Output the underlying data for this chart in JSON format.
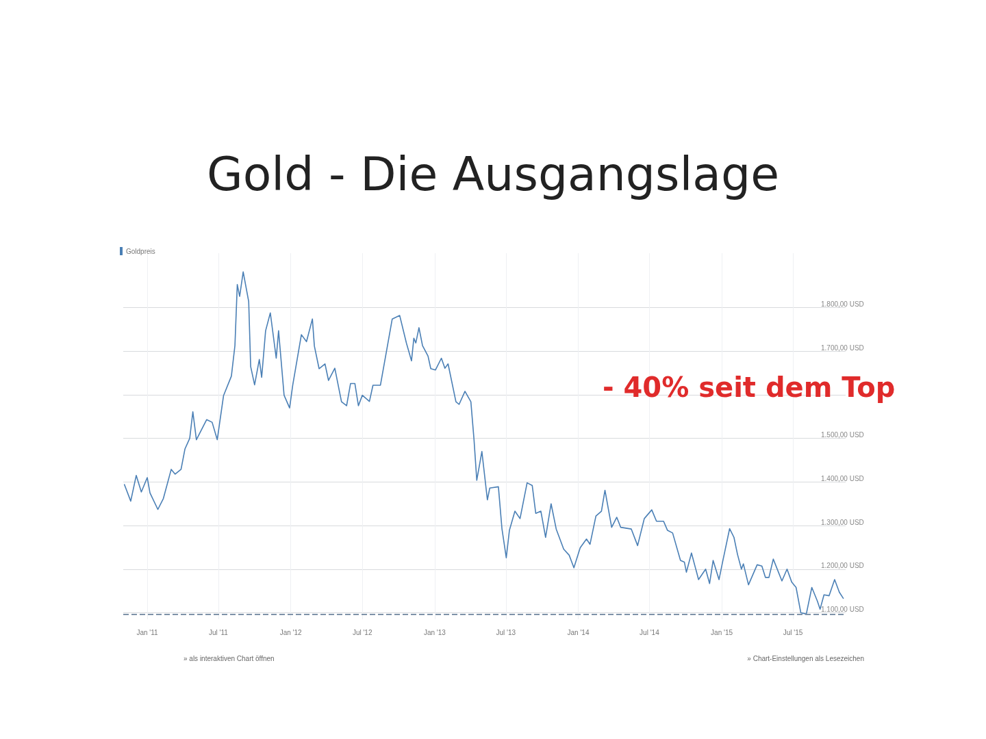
{
  "chart_data": {
    "type": "line",
    "title": "Gold - Die Ausgangslage",
    "annotations": [
      "- 40% seit dem Top",
      "» als interaktiven Chart öffnen",
      "» Chart-Einstellungen als Lesezeichen"
    ],
    "legend": "top left",
    "grid": true,
    "marker": "none",
    "line_style": "solid",
    "xlim": [
      "2010-11-01",
      "2015-11-12"
    ],
    "xticks": [
      {
        "value": "2011-01-01",
        "label": "Jan '11"
      },
      {
        "value": "2011-07-01",
        "label": "Jul '11"
      },
      {
        "value": "2012-01-01",
        "label": "Jan '12"
      },
      {
        "value": "2012-07-01",
        "label": "Jul '12"
      },
      {
        "value": "2013-01-01",
        "label": "Jan '13"
      },
      {
        "value": "2013-07-01",
        "label": "Jul '13"
      },
      {
        "value": "2014-01-01",
        "label": "Jan '14"
      },
      {
        "value": "2014-07-01",
        "label": "Jul '14"
      },
      {
        "value": "2015-01-01",
        "label": "Jan '15"
      },
      {
        "value": "2015-07-01",
        "label": "Jul '15"
      }
    ],
    "ylim": [
      1085,
      1925
    ],
    "yticks": [
      {
        "value": 1100,
        "label": "1.100,00 USD"
      },
      {
        "value": 1200,
        "label": "1.200,00 USD"
      },
      {
        "value": 1300,
        "label": "1.300,00 USD"
      },
      {
        "value": 1400,
        "label": "1.400,00 USD"
      },
      {
        "value": 1500,
        "label": "1.500,00 USD"
      },
      {
        "value": 1600,
        "label": null
      },
      {
        "value": 1700,
        "label": "1.700,00 USD"
      },
      {
        "value": 1800,
        "label": "1.800,00 USD"
      }
    ],
    "ref_lines": [
      {
        "axis": "y",
        "value": 1097,
        "color": "#7f93a8",
        "line_style": "dashed"
      }
    ],
    "x": [
      "2010-11-04",
      "2010-11-20",
      "2010-12-04",
      "2010-12-17",
      "2011-01-01",
      "2011-01-08",
      "2011-01-28",
      "2011-02-11",
      "2011-03-03",
      "2011-03-13",
      "2011-03-28",
      "2011-04-07",
      "2011-04-19",
      "2011-04-27",
      "2011-05-06",
      "2011-06-01",
      "2011-06-15",
      "2011-06-28",
      "2011-07-14",
      "2011-08-03",
      "2011-08-12",
      "2011-08-18",
      "2011-08-24",
      "2011-09-02",
      "2011-09-16",
      "2011-09-21",
      "2011-10-01",
      "2011-10-13",
      "2011-10-19",
      "2011-10-29",
      "2011-11-10",
      "2011-11-25",
      "2011-12-01",
      "2011-12-15",
      "2011-12-29",
      "2012-01-06",
      "2012-01-28",
      "2012-02-10",
      "2012-02-25",
      "2012-03-01",
      "2012-03-13",
      "2012-03-28",
      "2012-04-06",
      "2012-04-22",
      "2012-05-09",
      "2012-05-22",
      "2012-06-01",
      "2012-06-12",
      "2012-06-21",
      "2012-07-01",
      "2012-07-19",
      "2012-07-28",
      "2012-08-16",
      "2012-09-15",
      "2012-10-04",
      "2012-10-21",
      "2012-11-03",
      "2012-11-09",
      "2012-11-14",
      "2012-11-22",
      "2012-12-01",
      "2012-12-15",
      "2012-12-22",
      "2013-01-03",
      "2013-01-18",
      "2013-01-27",
      "2013-02-04",
      "2013-02-24",
      "2013-03-04",
      "2013-03-19",
      "2013-04-03",
      "2013-04-11",
      "2013-04-18",
      "2013-05-01",
      "2013-05-15",
      "2013-05-21",
      "2013-06-12",
      "2013-06-21",
      "2013-07-02",
      "2013-07-10",
      "2013-07-24",
      "2013-08-06",
      "2013-08-24",
      "2013-09-06",
      "2013-09-15",
      "2013-09-28",
      "2013-10-10",
      "2013-10-24",
      "2013-11-06",
      "2013-11-25",
      "2013-12-09",
      "2013-12-21",
      "2014-01-06",
      "2014-01-22",
      "2014-01-31",
      "2014-02-15",
      "2014-03-01",
      "2014-03-10",
      "2014-03-27",
      "2014-04-09",
      "2014-04-19",
      "2014-05-16",
      "2014-06-01",
      "2014-06-18",
      "2014-07-07",
      "2014-07-19",
      "2014-08-06",
      "2014-08-16",
      "2014-08-29",
      "2014-09-18",
      "2014-09-28",
      "2014-10-03",
      "2014-10-16",
      "2014-11-03",
      "2014-11-21",
      "2014-12-01",
      "2014-12-10",
      "2014-12-25",
      "2015-01-03",
      "2015-01-21",
      "2015-02-01",
      "2015-02-10",
      "2015-02-20",
      "2015-02-25",
      "2015-03-10",
      "2015-04-01",
      "2015-04-13",
      "2015-04-22",
      "2015-05-01",
      "2015-05-12",
      "2015-06-03",
      "2015-06-16",
      "2015-06-28",
      "2015-07-09",
      "2015-07-21",
      "2015-08-04",
      "2015-08-18",
      "2015-09-01",
      "2015-09-08",
      "2015-09-18",
      "2015-10-01",
      "2015-10-15",
      "2015-10-27",
      "2015-11-06"
    ],
    "series": [
      {
        "name": "Goldpreis",
        "color": "#4a7fb5",
        "values": [
          1394,
          1356,
          1415,
          1377,
          1410,
          1375,
          1337,
          1362,
          1429,
          1418,
          1429,
          1476,
          1500,
          1561,
          1497,
          1543,
          1537,
          1497,
          1598,
          1643,
          1713,
          1853,
          1826,
          1882,
          1814,
          1665,
          1623,
          1681,
          1640,
          1747,
          1788,
          1684,
          1747,
          1599,
          1570,
          1622,
          1738,
          1722,
          1774,
          1712,
          1660,
          1671,
          1633,
          1661,
          1584,
          1575,
          1626,
          1626,
          1575,
          1599,
          1585,
          1622,
          1622,
          1774,
          1782,
          1719,
          1678,
          1730,
          1719,
          1754,
          1713,
          1689,
          1660,
          1657,
          1684,
          1661,
          1671,
          1584,
          1578,
          1608,
          1584,
          1497,
          1404,
          1470,
          1359,
          1386,
          1389,
          1293,
          1226,
          1289,
          1333,
          1316,
          1398,
          1392,
          1328,
          1333,
          1273,
          1350,
          1292,
          1246,
          1232,
          1203,
          1249,
          1269,
          1257,
          1322,
          1333,
          1381,
          1296,
          1319,
          1296,
          1292,
          1254,
          1316,
          1336,
          1310,
          1310,
          1289,
          1283,
          1220,
          1216,
          1193,
          1237,
          1176,
          1200,
          1167,
          1220,
          1176,
          1216,
          1293,
          1273,
          1234,
          1200,
          1212,
          1164,
          1210,
          1207,
          1181,
          1181,
          1223,
          1173,
          1200,
          1170,
          1158,
          1100,
          1097,
          1158,
          1127,
          1108,
          1141,
          1139,
          1176,
          1147,
          1133
        ]
      }
    ]
  }
}
